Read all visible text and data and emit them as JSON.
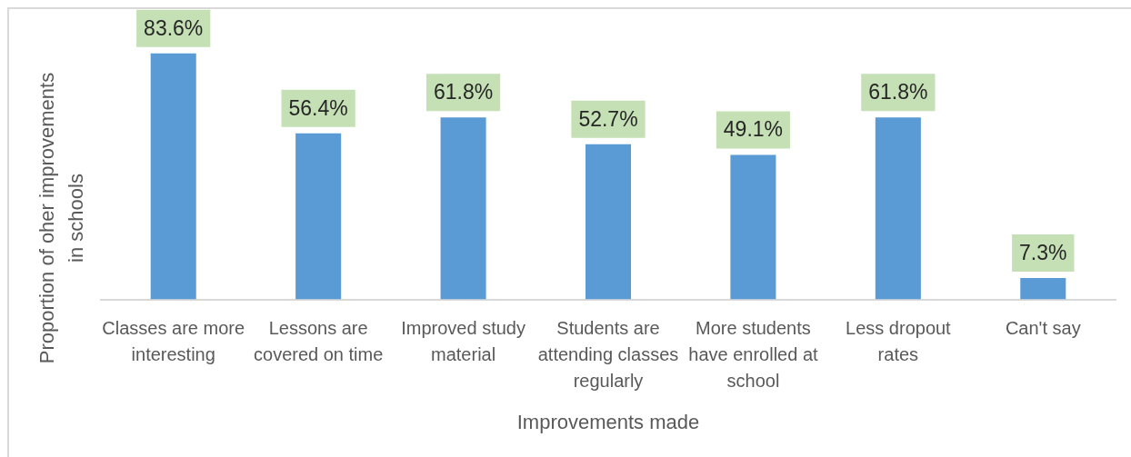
{
  "chart_data": {
    "type": "bar",
    "xlabel": "Improvements made",
    "ylabel": "Proportion of oher improvements in schools",
    "categories": [
      "Classes are more interesting",
      "Lessons are covered on time",
      "Improved study material",
      "Students are attending classes regularly",
      "More students have enrolled at school",
      "Less dropout rates",
      "Can't say"
    ],
    "values": [
      83.6,
      56.4,
      61.8,
      52.7,
      49.1,
      61.8,
      7.3
    ],
    "color": "#5b9bd5",
    "value_labels": [
      "83.6%",
      "56.4%",
      "61.8%",
      "52.7%",
      "49.1%",
      "61.8%",
      "7.3%"
    ]
  }
}
